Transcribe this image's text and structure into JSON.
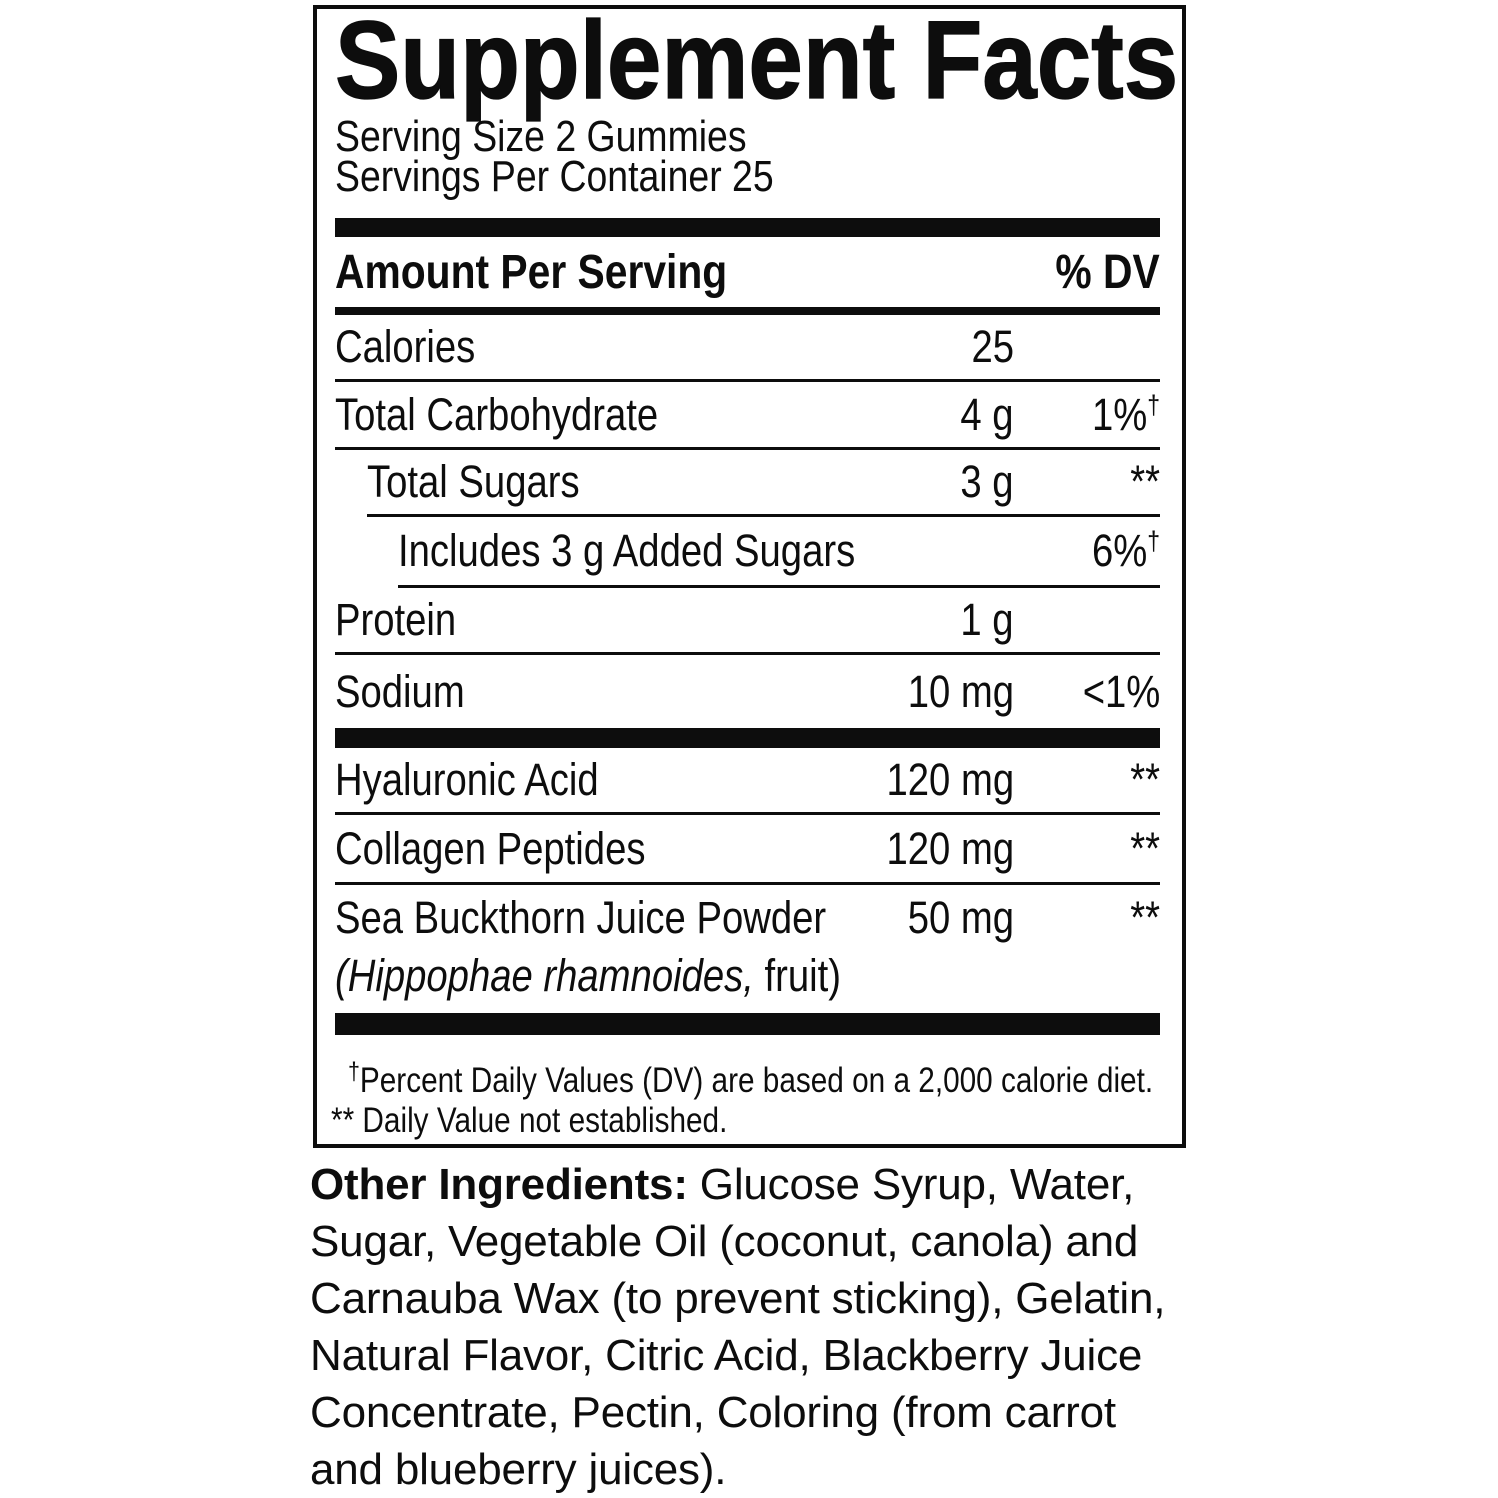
{
  "panel": {
    "title": "Supplement Facts",
    "serving_size": "Serving Size 2 Gummies",
    "servings_per_container": "Servings Per Container 25",
    "columns": {
      "amount": "Amount Per Serving",
      "dv": "% DV"
    },
    "rows": [
      {
        "label": "Calories",
        "amount": "25",
        "dv": "",
        "dv_sup": ""
      },
      {
        "label": "Total Carbohydrate",
        "amount": "4 g",
        "dv": "1%",
        "dv_sup": "†"
      },
      {
        "label": "Total Sugars",
        "amount": "3 g",
        "dv": "**",
        "dv_sup": ""
      },
      {
        "label": "Includes 3 g Added Sugars",
        "amount": "",
        "dv": "6%",
        "dv_sup": "†"
      },
      {
        "label": "Protein",
        "amount": "1 g",
        "dv": "",
        "dv_sup": ""
      },
      {
        "label": "Sodium",
        "amount": "10 mg",
        "dv": "<1%",
        "dv_sup": ""
      },
      {
        "label": "Hyaluronic Acid",
        "amount": "120 mg",
        "dv": "**",
        "dv_sup": ""
      },
      {
        "label": "Collagen Peptides",
        "amount": "120 mg",
        "dv": "**",
        "dv_sup": ""
      },
      {
        "label": "Sea Buckthorn Juice Powder",
        "amount": "50 mg",
        "dv": "**",
        "dv_sup": ""
      }
    ],
    "botanical": {
      "italic": "(Hippophae rhamnoides,",
      "rest": " fruit)"
    },
    "footnotes": [
      {
        "marker": "†",
        "text": "Percent Daily Values (DV) are based on a 2,000 calorie diet."
      },
      {
        "marker": "**",
        "text": " Daily Value not established."
      }
    ]
  },
  "other_ingredients": {
    "label": "Other Ingredients: ",
    "text": "Glucose Syrup, Water, Sugar, Vegetable Oil (coconut, canola) and Carnauba Wax (to prevent sticking), Gelatin, Natural Flavor, Citric Acid, Blackberry Juice Concentrate, Pectin, Coloring (from carrot and blueberry juices)."
  },
  "colors": {
    "ink": "#0d0d0d",
    "paper": "#ffffff"
  }
}
